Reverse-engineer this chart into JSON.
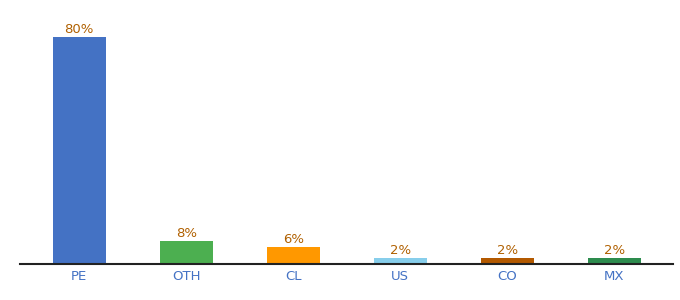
{
  "categories": [
    "PE",
    "OTH",
    "CL",
    "US",
    "CO",
    "MX"
  ],
  "values": [
    80,
    8,
    6,
    2,
    2,
    2
  ],
  "bar_colors": [
    "#4472c4",
    "#4caf50",
    "#ff9800",
    "#87ceeb",
    "#b35900",
    "#2d8c4e"
  ],
  "ylim": [
    0,
    90
  ],
  "background_color": "#ffffff",
  "label_color": "#b06000",
  "label_fontsize": 9.5,
  "tick_color": "#4472c4",
  "tick_fontsize": 9.5,
  "bar_width": 0.5
}
